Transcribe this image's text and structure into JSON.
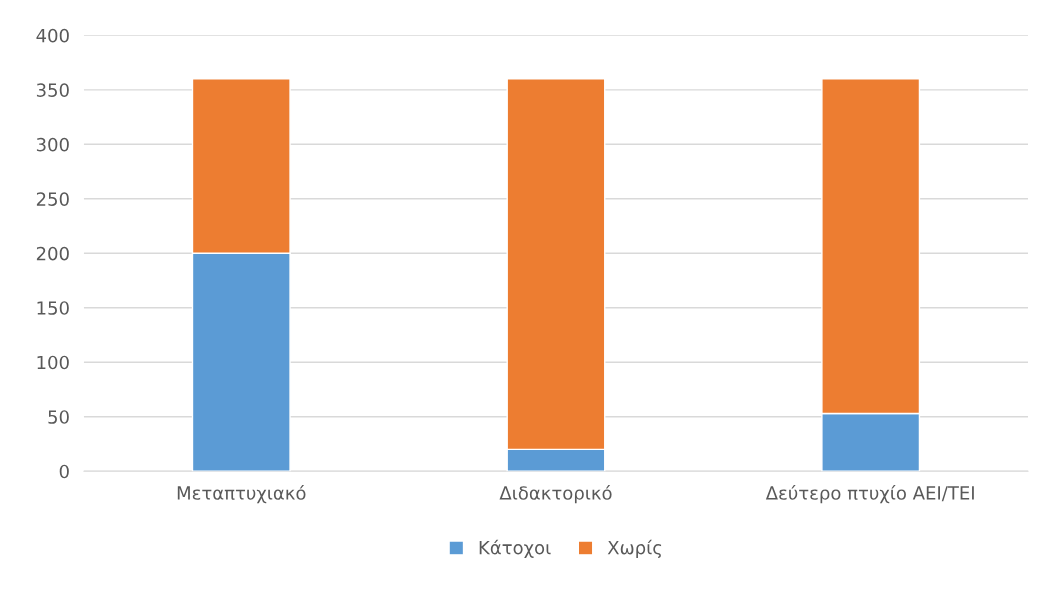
{
  "chart_data": {
    "type": "bar",
    "stacked": true,
    "categories": [
      "Μεταπτυχιακό",
      "Διδακτορικό",
      "Δεύτερο πτυχίο ΑΕΙ/ΤΕΙ"
    ],
    "series": [
      {
        "name": "Κάτοχοι",
        "color": "#5b9bd5",
        "values": [
          200,
          20,
          53
        ]
      },
      {
        "name": "Χωρίς",
        "color": "#ed7d31",
        "values": [
          160,
          340,
          307
        ]
      }
    ],
    "ylim": [
      0,
      400
    ],
    "yticks": [
      0,
      50,
      100,
      150,
      200,
      250,
      300,
      350,
      400
    ],
    "grid": "y",
    "legend": "bottom"
  }
}
